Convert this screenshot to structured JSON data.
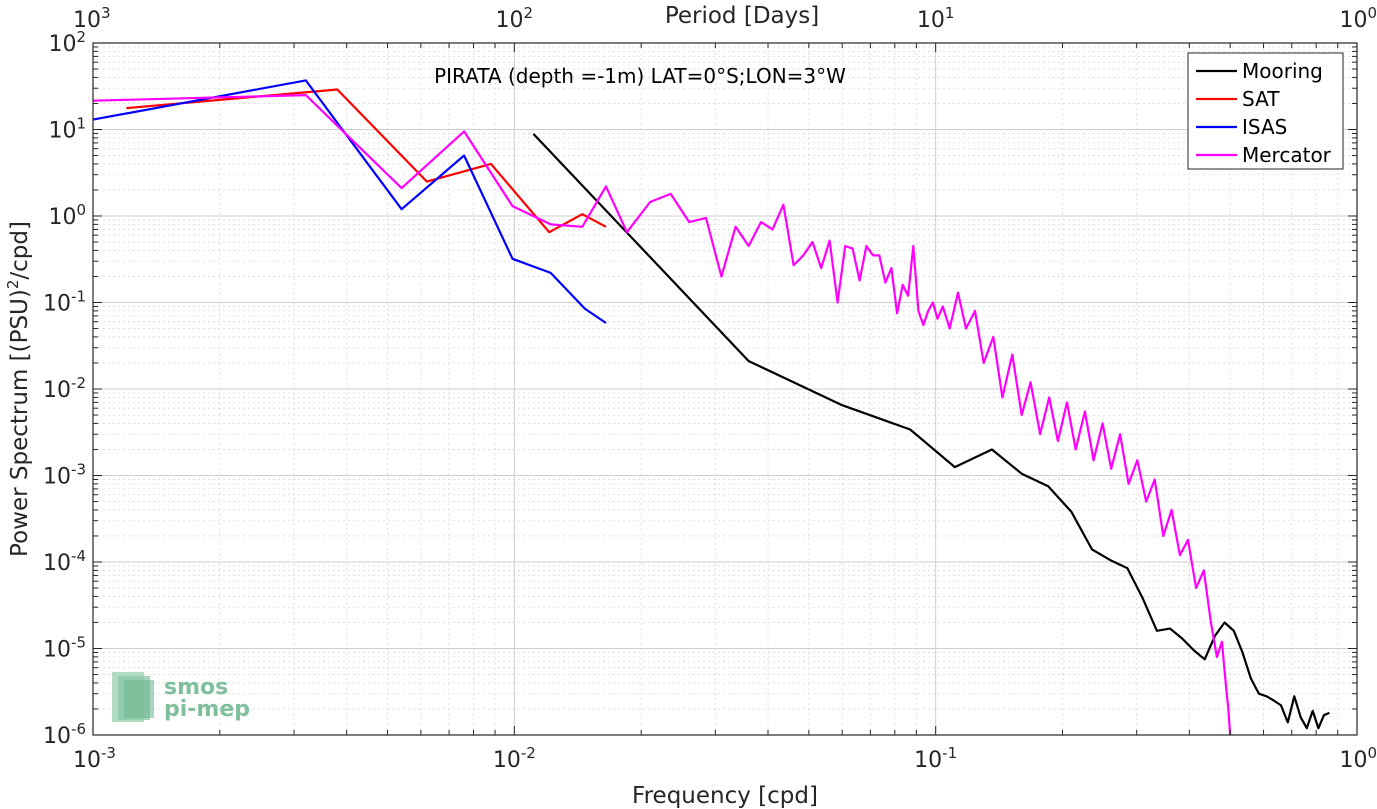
{
  "chart_data": {
    "type": "line",
    "title": "PIRATA (depth =-1m) LAT=0°S;LON=3°W",
    "xlabel": "Frequency [cpd]",
    "ylabel": "Power Spectrum [(PSU)",
    "ylabel_sup": "2",
    "ylabel_tail": "/cpd]",
    "x2label": "Period [Days]",
    "xscale": "log",
    "yscale": "log",
    "xlim": [
      0.001,
      1
    ],
    "ylim": [
      1e-06,
      100
    ],
    "grid": true,
    "legend_position": "top-right",
    "x_ticks": [
      {
        "v": 0.001,
        "base": "10",
        "exp": "-3"
      },
      {
        "v": 0.01,
        "base": "10",
        "exp": "-2"
      },
      {
        "v": 0.1,
        "base": "10",
        "exp": "-1"
      },
      {
        "v": 1,
        "base": "10",
        "exp": "0"
      }
    ],
    "x2_ticks": [
      {
        "v": 0.001,
        "base": "10",
        "exp": "3"
      },
      {
        "v": 0.01,
        "base": "10",
        "exp": "2"
      },
      {
        "v": 0.1,
        "base": "10",
        "exp": "1"
      },
      {
        "v": 1,
        "base": "10",
        "exp": "0"
      }
    ],
    "y_ticks": [
      {
        "v": 100,
        "base": "10",
        "exp": "2"
      },
      {
        "v": 10,
        "base": "10",
        "exp": "1"
      },
      {
        "v": 1,
        "base": "10",
        "exp": "0"
      },
      {
        "v": 0.1,
        "base": "10",
        "exp": "-1"
      },
      {
        "v": 0.01,
        "base": "10",
        "exp": "-2"
      },
      {
        "v": 0.001,
        "base": "10",
        "exp": "-3"
      },
      {
        "v": 0.0001,
        "base": "10",
        "exp": "-4"
      },
      {
        "v": 1e-05,
        "base": "10",
        "exp": "-5"
      },
      {
        "v": 1e-06,
        "base": "10",
        "exp": "-6"
      }
    ],
    "series": [
      {
        "name": "Mooring",
        "color": "#000000",
        "x": [
          0.0111,
          0.036,
          0.06,
          0.087,
          0.111,
          0.136,
          0.16,
          0.185,
          0.21,
          0.235,
          0.26,
          0.285,
          0.31,
          0.335,
          0.36,
          0.385,
          0.41,
          0.435,
          0.46,
          0.485,
          0.51,
          0.535,
          0.56,
          0.585,
          0.61,
          0.635,
          0.66,
          0.685,
          0.71,
          0.735,
          0.76,
          0.785,
          0.81,
          0.835,
          0.86
        ],
        "y": [
          8.9,
          0.021,
          0.0065,
          0.0034,
          0.00125,
          0.002,
          0.00105,
          0.00075,
          0.00038,
          0.00014,
          0.000105,
          8.5e-05,
          3.8e-05,
          1.6e-05,
          1.7e-05,
          1.3e-05,
          9.5e-06,
          7.5e-06,
          1.4e-05,
          2e-05,
          1.6e-05,
          9e-06,
          4.5e-06,
          3e-06,
          2.8e-06,
          2.5e-06,
          2.2e-06,
          1.4e-06,
          2.8e-06,
          1.6e-06,
          1.2e-06,
          1.9e-06,
          1.2e-06,
          1.7e-06,
          1.8e-06
        ]
      },
      {
        "name": "SAT",
        "color": "#ff0000",
        "x": [
          0.0012,
          0.0038,
          0.0062,
          0.0088,
          0.0121,
          0.0145,
          0.0165
        ],
        "y": [
          17.7,
          29.0,
          2.5,
          4.0,
          0.65,
          1.05,
          0.75
        ]
      },
      {
        "name": "ISAS",
        "color": "#0000ff",
        "x": [
          0.001,
          0.0032,
          0.0054,
          0.0076,
          0.0099,
          0.0122,
          0.0147,
          0.0165
        ],
        "y": [
          13.0,
          37.0,
          1.2,
          5.0,
          0.32,
          0.22,
          0.085,
          0.058
        ]
      },
      {
        "name": "Mercator",
        "color": "#ff00ff",
        "x": [
          0.001,
          0.0032,
          0.0054,
          0.0076,
          0.0099,
          0.0122,
          0.0145,
          0.0165,
          0.0185,
          0.021,
          0.0235,
          0.026,
          0.0285,
          0.031,
          0.0335,
          0.036,
          0.0385,
          0.041,
          0.0435,
          0.046,
          0.0485,
          0.051,
          0.0535,
          0.056,
          0.0585,
          0.061,
          0.0635,
          0.066,
          0.0685,
          0.071,
          0.0735,
          0.076,
          0.0785,
          0.081,
          0.0835,
          0.086,
          0.0885,
          0.091,
          0.0935,
          0.096,
          0.0985,
          0.101,
          0.104,
          0.108,
          0.113,
          0.118,
          0.124,
          0.13,
          0.137,
          0.144,
          0.152,
          0.16,
          0.168,
          0.177,
          0.186,
          0.195,
          0.205,
          0.215,
          0.226,
          0.237,
          0.249,
          0.261,
          0.274,
          0.287,
          0.301,
          0.316,
          0.331,
          0.347,
          0.363,
          0.38,
          0.397,
          0.415,
          0.433,
          0.45,
          0.465,
          0.478,
          0.488,
          0.495,
          0.5
        ],
        "y": [
          21.5,
          25.0,
          2.1,
          9.5,
          1.3,
          0.8,
          0.75,
          2.2,
          0.65,
          1.45,
          1.8,
          0.85,
          0.95,
          0.2,
          0.75,
          0.45,
          0.85,
          0.7,
          1.35,
          0.27,
          0.35,
          0.5,
          0.25,
          0.52,
          0.1,
          0.45,
          0.42,
          0.18,
          0.45,
          0.35,
          0.35,
          0.17,
          0.25,
          0.075,
          0.16,
          0.12,
          0.45,
          0.08,
          0.055,
          0.08,
          0.1,
          0.065,
          0.09,
          0.05,
          0.13,
          0.05,
          0.08,
          0.02,
          0.04,
          0.008,
          0.025,
          0.005,
          0.012,
          0.003,
          0.008,
          0.0025,
          0.007,
          0.002,
          0.0055,
          0.0015,
          0.004,
          0.0012,
          0.003,
          0.0008,
          0.0015,
          0.0005,
          0.0009,
          0.0002,
          0.0004,
          0.00012,
          0.00018,
          5e-05,
          8e-05,
          2e-05,
          8e-06,
          1.2e-05,
          4e-06,
          2e-06,
          1e-06
        ]
      }
    ]
  },
  "logo": {
    "line1": "smos",
    "line2": "pi-mep"
  }
}
